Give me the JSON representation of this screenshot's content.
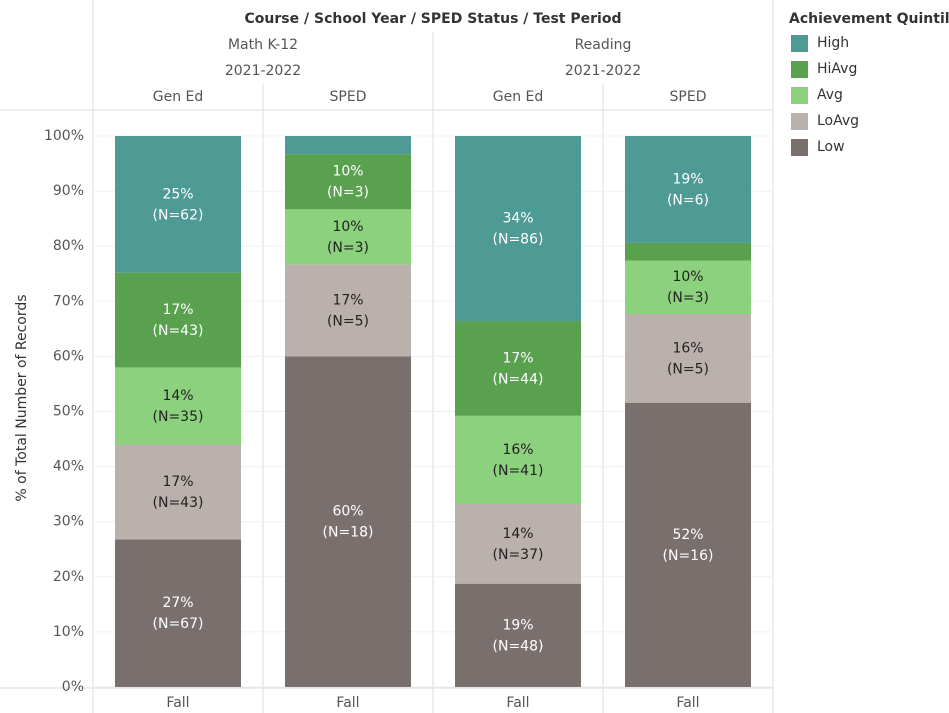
{
  "chart_data": {
    "type": "stacked_bar",
    "title": "Course / School Year / SPED Status / Test Period",
    "groups": [
      {
        "course": "Math K-12",
        "year": "2021-2022"
      },
      {
        "course": "Reading",
        "year": "2021-2022"
      }
    ],
    "status": [
      "Gen Ed",
      "SPED",
      "Gen Ed",
      "SPED"
    ],
    "categories": [
      "Fall",
      "Fall",
      "Fall",
      "Fall"
    ],
    "ylabel": "% of Total Number of Records",
    "ylim": [
      0,
      100
    ],
    "yticks": [
      {
        "value": 0,
        "label": "0%"
      },
      {
        "value": 10,
        "label": "10%"
      },
      {
        "value": 20,
        "label": "20%"
      },
      {
        "value": 30,
        "label": "30%"
      },
      {
        "value": 40,
        "label": "40%"
      },
      {
        "value": 50,
        "label": "50%"
      },
      {
        "value": 60,
        "label": "60%"
      },
      {
        "value": 70,
        "label": "70%"
      },
      {
        "value": 80,
        "label": "80%"
      },
      {
        "value": 90,
        "label": "90%"
      },
      {
        "value": 100,
        "label": "100%"
      }
    ],
    "grid": true,
    "legend_title": "Achievement Quintile",
    "legend": "right",
    "series": [
      {
        "name": "Low",
        "color": "#79706e",
        "text_color": "#ffffff",
        "values": [
          26.8,
          60,
          18.75,
          51.6
        ],
        "value_labels": [
          "27%",
          "60%",
          "19%",
          "52%"
        ],
        "count_labels": [
          "(N=67)",
          "(N=18)",
          "(N=48)",
          "(N=16)"
        ]
      },
      {
        "name": "LoAvg",
        "color": "#bab0ac",
        "text_color": "#222222",
        "values": [
          17.2,
          16.7,
          14.45,
          16.1
        ],
        "value_labels": [
          "17%",
          "17%",
          "14%",
          "16%"
        ],
        "count_labels": [
          "(N=43)",
          "(N=5)",
          "(N=37)",
          "(N=5)"
        ]
      },
      {
        "name": "Avg",
        "color": "#8cd17d",
        "text_color": "#222222",
        "values": [
          14,
          10,
          16.02,
          9.7
        ],
        "value_labels": [
          "14%",
          "10%",
          "16%",
          "10%"
        ],
        "count_labels": [
          "(N=35)",
          "(N=3)",
          "(N=41)",
          "(N=3)"
        ]
      },
      {
        "name": "HiAvg",
        "color": "#59a14f",
        "text_color": "#ffffff",
        "values": [
          17.2,
          10,
          17.19,
          3.2
        ],
        "value_labels": [
          "17%",
          "10%",
          "17%",
          null
        ],
        "count_labels": [
          "(N=43)",
          "(N=3)",
          "(N=44)",
          null
        ]
      },
      {
        "name": "High",
        "color": "#4e9a94",
        "text_color": "#ffffff",
        "values": [
          24.8,
          3.3,
          33.59,
          19.4
        ],
        "value_labels": [
          "25%",
          null,
          "34%",
          "19%"
        ],
        "count_labels": [
          "(N=62)",
          null,
          "(N=86)",
          "(N=6)"
        ]
      }
    ]
  }
}
